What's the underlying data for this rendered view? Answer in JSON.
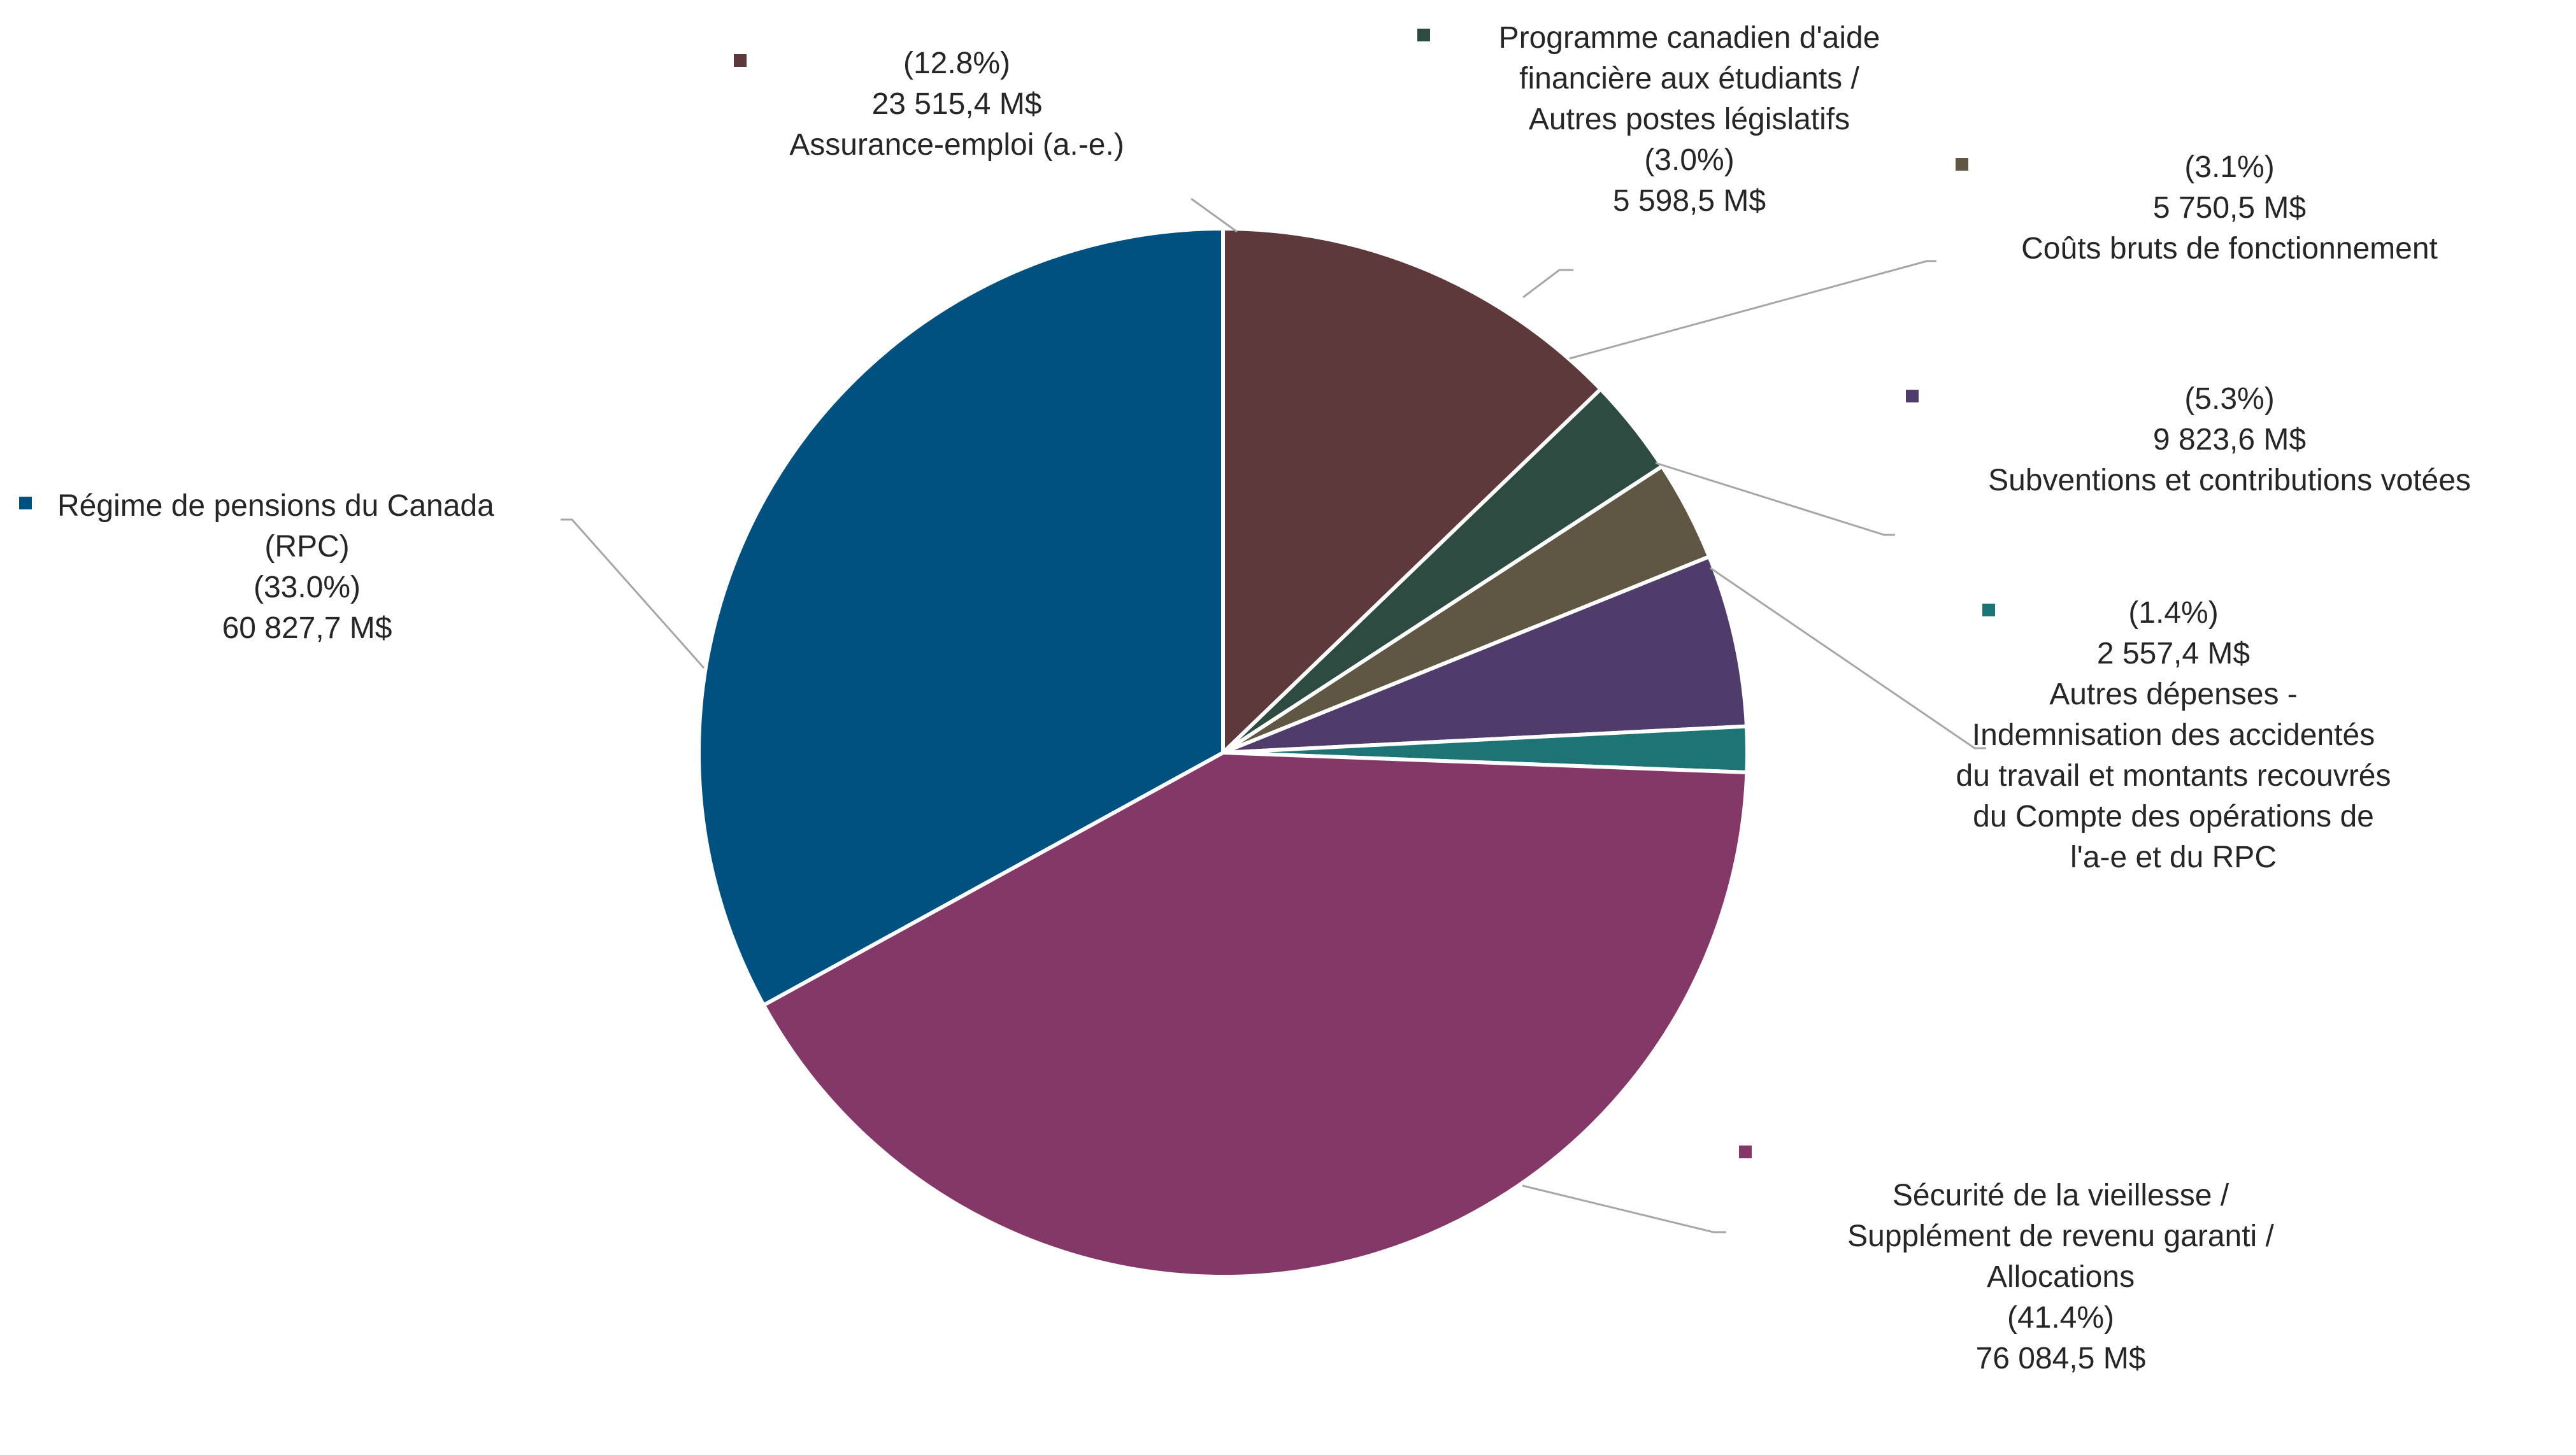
{
  "chart_data": {
    "type": "pie",
    "unit": "M$",
    "slices": [
      {
        "key": "secv",
        "value": 76084.5,
        "percent": 41.4,
        "percent_label": "(41.4%)",
        "value_label": "76 084,5 M$",
        "name_lines": [
          "Sécurité de la vieillesse /",
          "Supplément de revenu garanti /",
          "Allocations"
        ],
        "color": "#833868"
      },
      {
        "key": "rpc",
        "value": 60827.7,
        "percent": 33.0,
        "percent_label": "(33.0%)",
        "value_label": "60 827,7 M$",
        "name_lines": [
          "Régime de pensions du Canada",
          "(RPC)"
        ],
        "color": "#005080"
      },
      {
        "key": "ae",
        "value": 23515.4,
        "percent": 12.8,
        "percent_label": "(12.8%)",
        "value_label": "23 515,4 M$",
        "name_lines": [
          "Assurance-emploi (a.-e.)"
        ],
        "color": "#5e393b"
      },
      {
        "key": "pcae",
        "value": 5598.5,
        "percent": 3.0,
        "percent_label": "(3.0%)",
        "value_label": "5 598,5 M$",
        "name_lines": [
          "Programme canadien d'aide",
          "financière aux étudiants /",
          "Autres postes législatifs"
        ],
        "color": "#2e4b42"
      },
      {
        "key": "cbf",
        "value": 5750.5,
        "percent": 3.1,
        "percent_label": "(3.1%)",
        "value_label": "5 750,5 M$",
        "name_lines": [
          "Coûts bruts de fonctionnement"
        ],
        "color": "#5f5644"
      },
      {
        "key": "scv",
        "value": 9823.6,
        "percent": 5.3,
        "percent_label": "(5.3%)",
        "value_label": "9 823,6 M$",
        "name_lines": [
          "Subventions et contributions votées"
        ],
        "color": "#4f3c6a"
      },
      {
        "key": "ad",
        "value": 2557.4,
        "percent": 1.4,
        "percent_label": "(1.4%)",
        "value_label": "2 557,4 M$",
        "name_lines": [
          "Autres dépenses -",
          "Indemnisation des accidentés",
          "du travail et montants recouvrés",
          "du Compte des opérations de",
          "l'a-e et du RPC"
        ],
        "color": "#1e7375"
      }
    ],
    "slice_order_clockwise_from_top": [
      "ae",
      "pcae",
      "cbf",
      "scv",
      "ad",
      "secv",
      "rpc"
    ]
  }
}
